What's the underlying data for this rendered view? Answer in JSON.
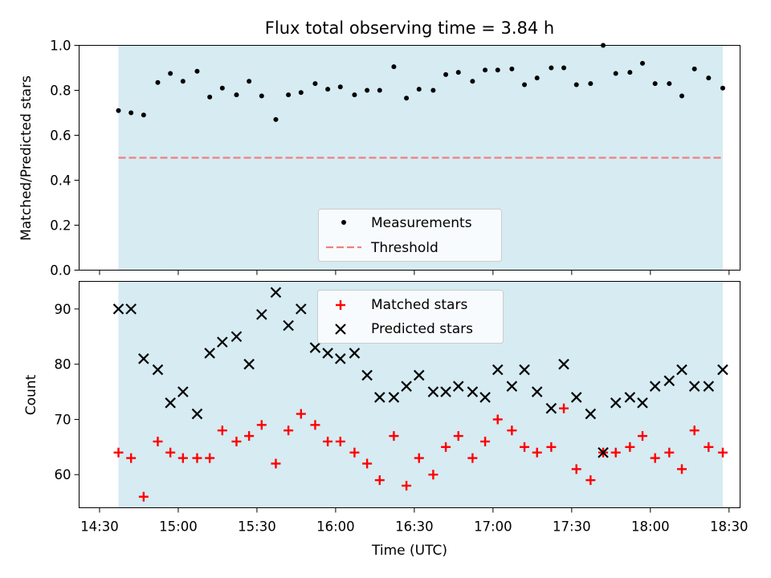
{
  "chart_data": [
    {
      "type": "scatter",
      "title": "Flux total observing time = 3.84 h",
      "xlabel": "",
      "ylabel": "Matched/Predicted stars",
      "xlim": [
        14.37,
        18.57
      ],
      "ylim": [
        0.0,
        1.0
      ],
      "shaded_span": [
        14.62,
        18.46
      ],
      "shade_color": "#add8e6",
      "yticks": [
        "0.0",
        "0.2",
        "0.4",
        "0.6",
        "0.8",
        "1.0"
      ],
      "legend": {
        "position": "lower-center",
        "entries": [
          "Measurements",
          "Threshold"
        ]
      },
      "threshold": {
        "name": "Threshold",
        "value": 0.5,
        "color": "#f08080",
        "style": "dashed",
        "x_range": [
          14.62,
          18.46
        ]
      },
      "series": [
        {
          "name": "Measurements",
          "color": "#000000",
          "x": [
            14.62,
            14.7,
            14.78,
            14.87,
            14.95,
            15.03,
            15.12,
            15.2,
            15.28,
            15.37,
            15.45,
            15.53,
            15.62,
            15.7,
            15.78,
            15.87,
            15.95,
            16.03,
            16.12,
            16.2,
            16.28,
            16.37,
            16.45,
            16.53,
            16.62,
            16.7,
            16.78,
            16.87,
            16.95,
            17.03,
            17.12,
            17.2,
            17.28,
            17.37,
            17.45,
            17.53,
            17.62,
            17.7,
            17.78,
            17.87,
            17.95,
            18.03,
            18.12,
            18.2,
            18.28,
            18.37,
            18.46
          ],
          "values": [
            0.71,
            0.7,
            0.69,
            0.835,
            0.875,
            0.84,
            0.885,
            0.77,
            0.81,
            0.78,
            0.84,
            0.775,
            0.67,
            0.78,
            0.79,
            0.83,
            0.805,
            0.815,
            0.78,
            0.8,
            0.8,
            0.905,
            0.765,
            0.805,
            0.8,
            0.87,
            0.88,
            0.84,
            0.89,
            0.89,
            0.895,
            0.825,
            0.855,
            0.9,
            0.9,
            0.825,
            0.83,
            1.0,
            0.875,
            0.88,
            0.92,
            0.83,
            0.83,
            0.775,
            0.895,
            0.855,
            0.81
          ]
        }
      ]
    },
    {
      "type": "scatter",
      "title": "",
      "xlabel": "Time (UTC)",
      "ylabel": "Count",
      "xlim": [
        14.37,
        18.57
      ],
      "ylim": [
        54,
        95
      ],
      "shaded_span": [
        14.62,
        18.46
      ],
      "shade_color": "#add8e6",
      "yticks": [
        "60",
        "70",
        "80",
        "90"
      ],
      "xticks": [
        "14:30",
        "15:00",
        "15:30",
        "16:00",
        "16:30",
        "17:00",
        "17:30",
        "18:00",
        "18:30"
      ],
      "legend": {
        "position": "upper-center",
        "entries": [
          "Matched stars",
          "Predicted stars"
        ]
      },
      "series": [
        {
          "name": "Matched stars",
          "marker": "plus",
          "color": "#ff0000",
          "x": [
            14.62,
            14.7,
            14.78,
            14.87,
            14.95,
            15.03,
            15.12,
            15.2,
            15.28,
            15.37,
            15.45,
            15.53,
            15.62,
            15.7,
            15.78,
            15.87,
            15.95,
            16.03,
            16.12,
            16.2,
            16.28,
            16.37,
            16.45,
            16.53,
            16.62,
            16.7,
            16.78,
            16.87,
            16.95,
            17.03,
            17.12,
            17.2,
            17.28,
            17.37,
            17.45,
            17.53,
            17.62,
            17.7,
            17.78,
            17.87,
            17.95,
            18.03,
            18.12,
            18.2,
            18.28,
            18.37,
            18.46
          ],
          "values": [
            64,
            63,
            56,
            66,
            64,
            63,
            63,
            63,
            68,
            66,
            67,
            69,
            62,
            68,
            71,
            69,
            66,
            66,
            64,
            62,
            59,
            67,
            58,
            63,
            60,
            65,
            67,
            63,
            66,
            70,
            68,
            65,
            64,
            65,
            72,
            61,
            59,
            64,
            64,
            65,
            67,
            63,
            64,
            61,
            68,
            65,
            64
          ]
        },
        {
          "name": "Predicted stars",
          "marker": "x",
          "color": "#000000",
          "x": [
            14.62,
            14.7,
            14.78,
            14.87,
            14.95,
            15.03,
            15.12,
            15.2,
            15.28,
            15.37,
            15.45,
            15.53,
            15.62,
            15.7,
            15.78,
            15.87,
            15.95,
            16.03,
            16.12,
            16.2,
            16.28,
            16.37,
            16.45,
            16.53,
            16.62,
            16.7,
            16.78,
            16.87,
            16.95,
            17.03,
            17.12,
            17.2,
            17.28,
            17.37,
            17.45,
            17.53,
            17.62,
            17.7,
            17.78,
            17.87,
            17.95,
            18.03,
            18.12,
            18.2,
            18.28,
            18.37,
            18.46
          ],
          "values": [
            90,
            90,
            81,
            79,
            73,
            75,
            71,
            82,
            84,
            85,
            80,
            89,
            93,
            87,
            90,
            83,
            82,
            81,
            82,
            78,
            74,
            74,
            76,
            78,
            75,
            75,
            76,
            75,
            74,
            79,
            76,
            79,
            75,
            72,
            80,
            74,
            71,
            64,
            73,
            74,
            73,
            76,
            77,
            79,
            76,
            76,
            79
          ]
        }
      ]
    }
  ]
}
